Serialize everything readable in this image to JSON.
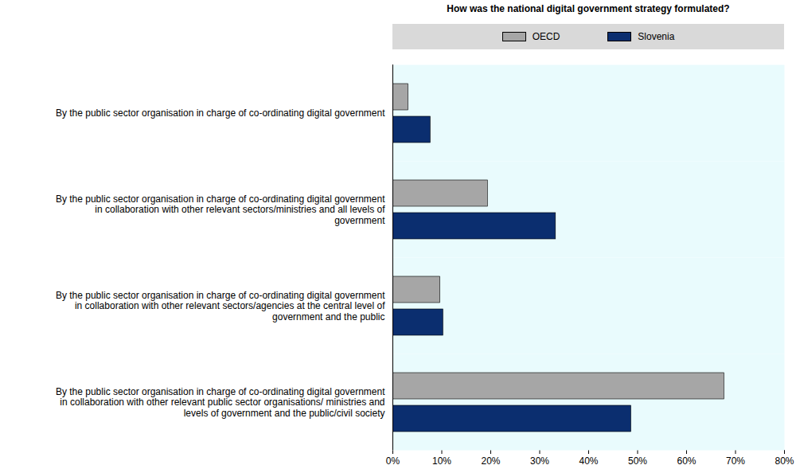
{
  "chart_data": {
    "type": "bar",
    "orientation": "horizontal",
    "title": "How was the national digital government strategy formulated?",
    "categories": [
      "By the public sector organisation in charge of co-ordinating digital government",
      "By the public sector organisation in charge of co-ordinating digital government\nin collaboration with other relevant sectors/ministries and all levels of\ngovernment",
      "By the public sector organisation in charge of co-ordinating digital government\nin collaboration with other relevant sectors/agencies at the central level of\ngovernment and the public",
      "By the public sector organisation in charge of co-ordinating digital government\nin collaboration with other relevant public sector organisations/ ministries and\nlevels of government and the public/civil society"
    ],
    "series": [
      {
        "name": "OECD",
        "color": "#a6a6a6",
        "values": [
          3.2,
          19.4,
          9.7,
          67.7
        ]
      },
      {
        "name": "Slovenia",
        "color": "#0b2e6f",
        "values": [
          7.7,
          33.3,
          10.3,
          48.7
        ]
      }
    ],
    "xlim": [
      0,
      80
    ],
    "xticks": [
      {
        "value": 0,
        "label": "0%"
      },
      {
        "value": 10,
        "label": "10%"
      },
      {
        "value": 20,
        "label": "20%"
      },
      {
        "value": 30,
        "label": "30%"
      },
      {
        "value": 40,
        "label": "40%"
      },
      {
        "value": 50,
        "label": "50%"
      },
      {
        "value": 60,
        "label": "60%"
      },
      {
        "value": 70,
        "label": "70%"
      },
      {
        "value": 80,
        "label": "80%"
      }
    ],
    "legend": "top",
    "grid": false
  }
}
